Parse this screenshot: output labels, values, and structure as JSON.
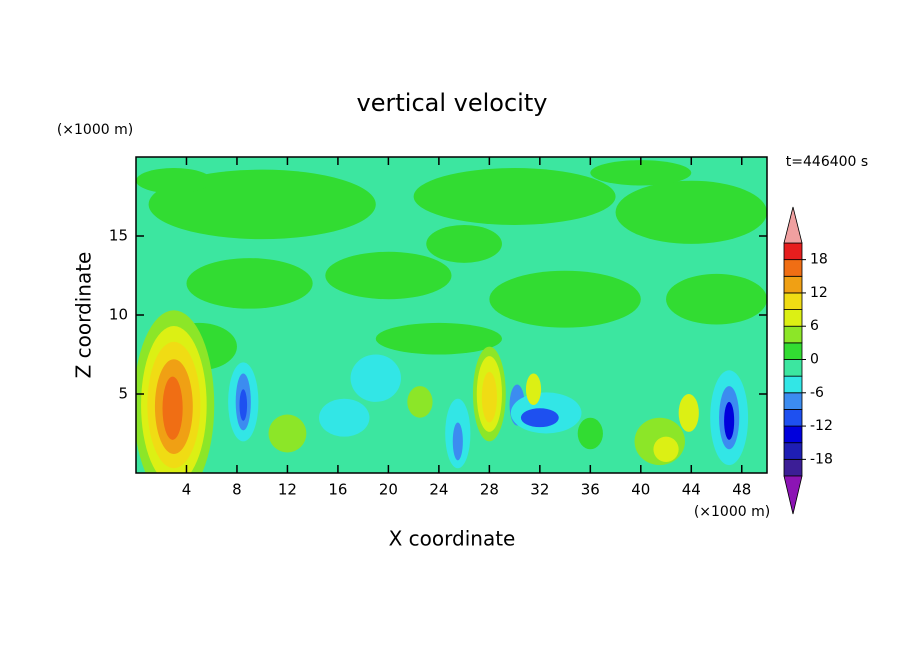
{
  "chart_data": {
    "type": "contour",
    "title": "vertical velocity",
    "x_label": "X coordinate",
    "y_label": "Z coordinate",
    "x_unit": "(×1000 m)",
    "y_unit": "(×1000 m)",
    "annotation": "t=446400 s",
    "xlim": [
      0,
      50
    ],
    "xticks": [
      4,
      8,
      12,
      16,
      20,
      24,
      28,
      32,
      36,
      40,
      44,
      48
    ],
    "ylim": [
      0,
      20
    ],
    "yticks": [
      5,
      10,
      15
    ],
    "colorbar": {
      "levels": [
        -21,
        -18,
        -15,
        -12,
        -9,
        -6,
        -3,
        0,
        3,
        6,
        9,
        12,
        15,
        18,
        21
      ],
      "ticks": [
        -18,
        -12,
        -6,
        0,
        6,
        12,
        18
      ],
      "colors": [
        "#3c1e96",
        "#1e1eb4",
        "#0000dc",
        "#1e50f0",
        "#3c8cf0",
        "#32e6e6",
        "#3ce6a0",
        "#32dc32",
        "#8ce628",
        "#dcf014",
        "#f0dc14",
        "#f0a014",
        "#f06e14",
        "#e61e1e"
      ],
      "under_color": "#8c14b4",
      "over_color": "#f0a0a0"
    }
  }
}
